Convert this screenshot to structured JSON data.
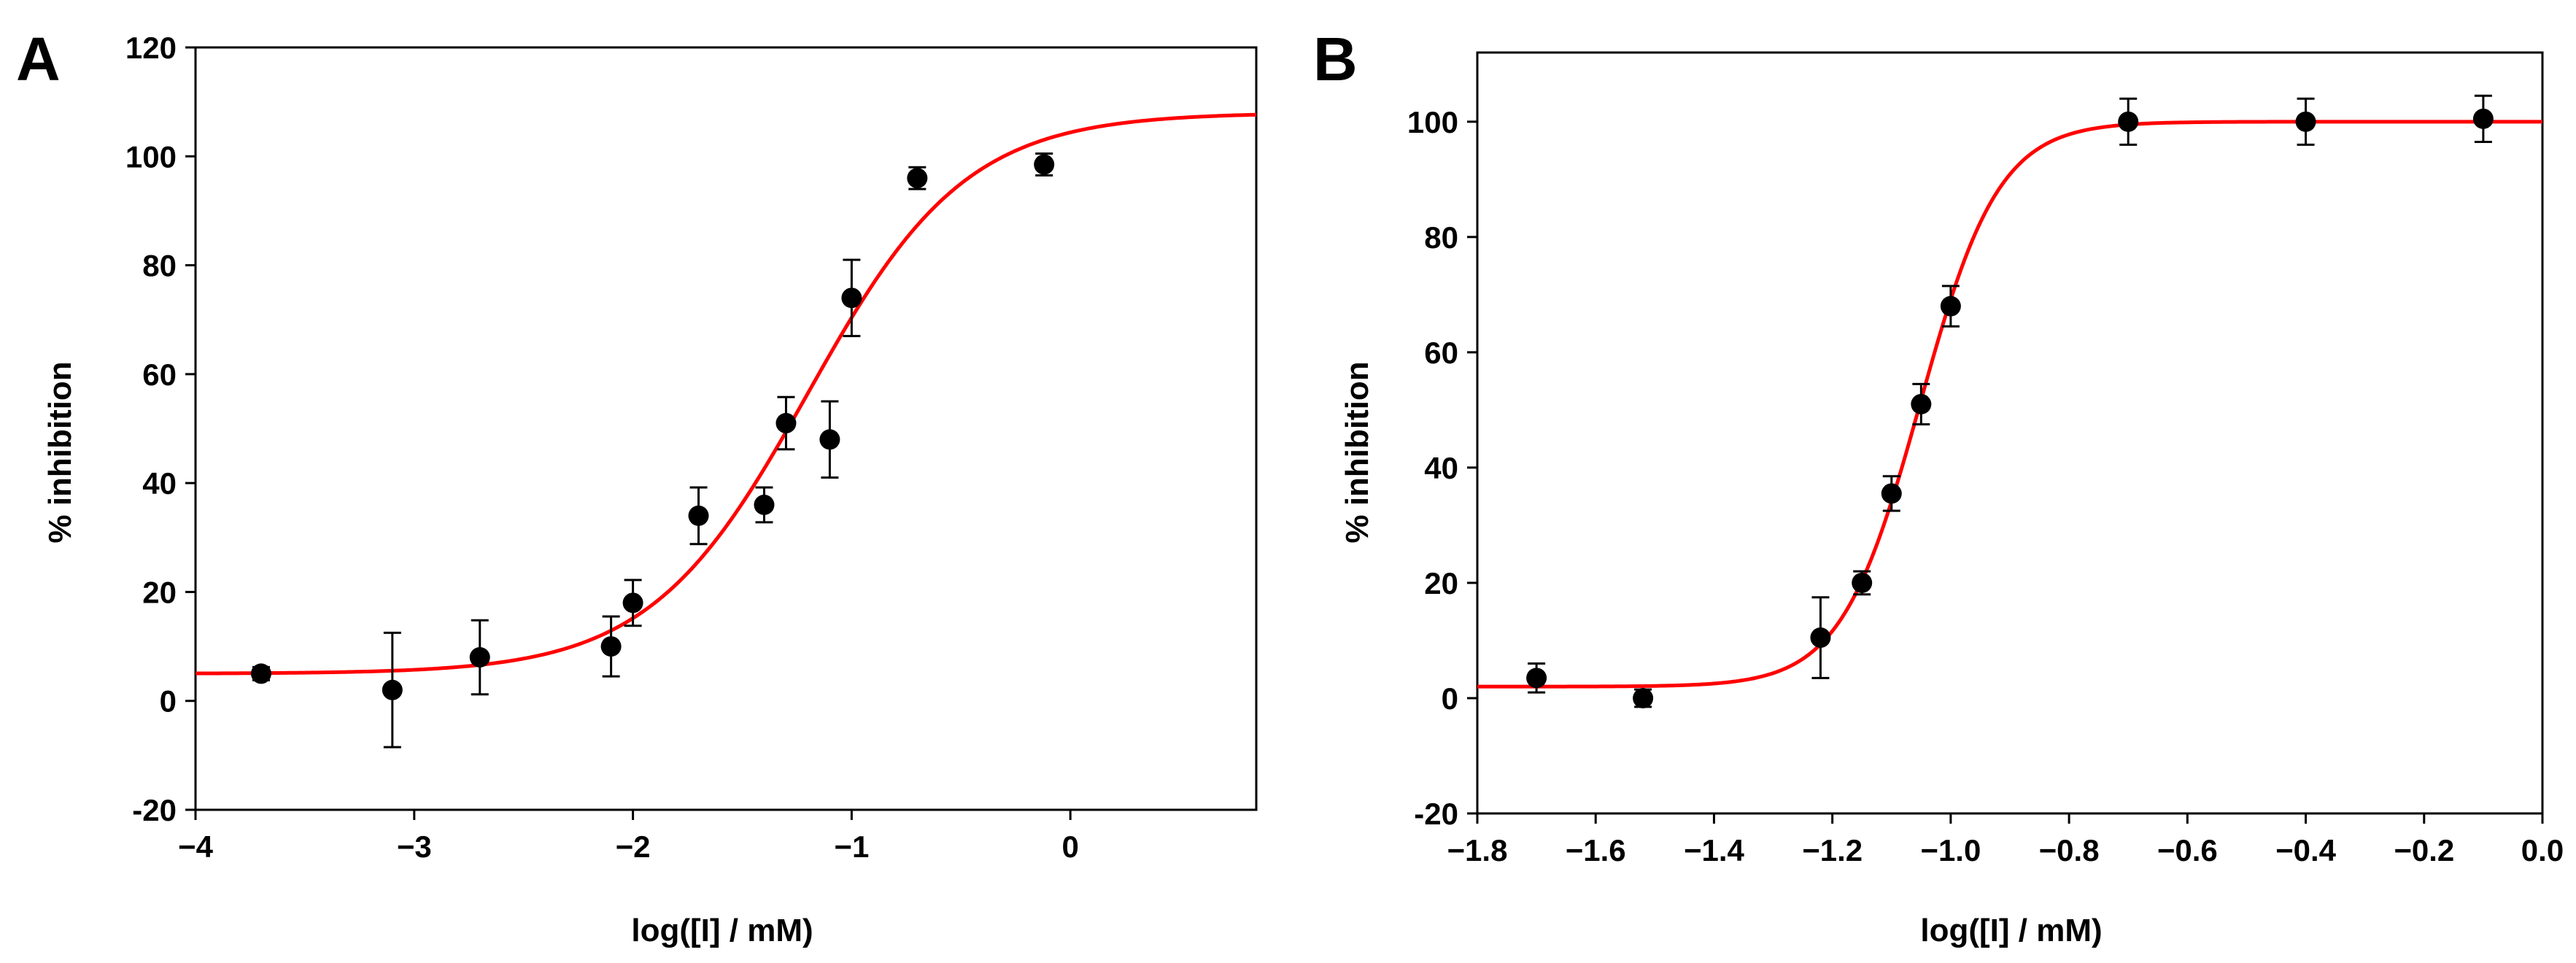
{
  "figure": {
    "panels": [
      "A",
      "B"
    ]
  },
  "colors": {
    "curve": "#ff0000",
    "marker": "#000000",
    "axis": "#000000"
  },
  "chart_data": [
    {
      "panel": "A",
      "type": "scatter",
      "title": "",
      "xlabel": "log([I] / mM)",
      "ylabel": "% inhibition",
      "xlim": [
        -4,
        0.85
      ],
      "ylim": [
        -20,
        120
      ],
      "xticks": [
        -4,
        -3,
        -2,
        -1,
        0
      ],
      "xtick_labels": [
        "−4",
        "−3",
        "−2",
        "−1",
        "0"
      ],
      "yticks": [
        -20,
        0,
        20,
        40,
        60,
        80,
        100,
        120
      ],
      "ytick_labels": [
        "-20",
        "0",
        "20",
        "40",
        "60",
        "80",
        "100",
        "120"
      ],
      "grid": false,
      "series": [
        {
          "name": "data",
          "x": [
            -3.7,
            -3.1,
            -2.7,
            -2.1,
            -2.0,
            -1.7,
            -1.4,
            -1.3,
            -1.1,
            -1.0,
            -0.7,
            -0.12
          ],
          "y": [
            5,
            2,
            8,
            10,
            18,
            34,
            36,
            51,
            48,
            74,
            96,
            98.5
          ],
          "yerr": [
            1.2,
            10.5,
            6.8,
            5.5,
            4.2,
            5.2,
            3.2,
            4.8,
            7.0,
            7.0,
            2.0,
            2.0
          ]
        }
      ],
      "fit": {
        "name": "fit",
        "bottom": 5,
        "top": 108,
        "logIC50": -1.2,
        "hill": 1.2
      }
    },
    {
      "panel": "B",
      "type": "scatter",
      "title": "",
      "xlabel": "log([I] / mM)",
      "ylabel": "% inhibition",
      "xlim": [
        -1.8,
        0.0
      ],
      "ylim": [
        -20,
        112
      ],
      "xticks": [
        -1.8,
        -1.6,
        -1.4,
        -1.2,
        -1.0,
        -0.8,
        -0.6,
        -0.4,
        -0.2,
        0.0
      ],
      "xtick_labels": [
        "−1.8",
        "−1.6",
        "−1.4",
        "−1.2",
        "−1.0",
        "−0.8",
        "−0.6",
        "−0.4",
        "−0.2",
        "0.0"
      ],
      "yticks": [
        -20,
        0,
        20,
        40,
        60,
        80,
        100
      ],
      "ytick_labels": [
        "-20",
        "0",
        "20",
        "40",
        "60",
        "80",
        "100"
      ],
      "grid": false,
      "series": [
        {
          "name": "data",
          "x": [
            -1.7,
            -1.52,
            -1.22,
            -1.15,
            -1.1,
            -1.05,
            -1.0,
            -0.7,
            -0.4,
            -0.1
          ],
          "y": [
            3.5,
            0,
            10.5,
            20,
            35.5,
            51,
            68,
            100,
            100,
            100.5
          ],
          "yerr": [
            2.5,
            1.5,
            7.0,
            2.0,
            3.0,
            3.5,
            3.5,
            4.0,
            4.0,
            4.0
          ]
        }
      ],
      "fit": {
        "name": "fit",
        "bottom": 2,
        "top": 100,
        "logIC50": -1.052,
        "hill": 6.5
      }
    }
  ]
}
